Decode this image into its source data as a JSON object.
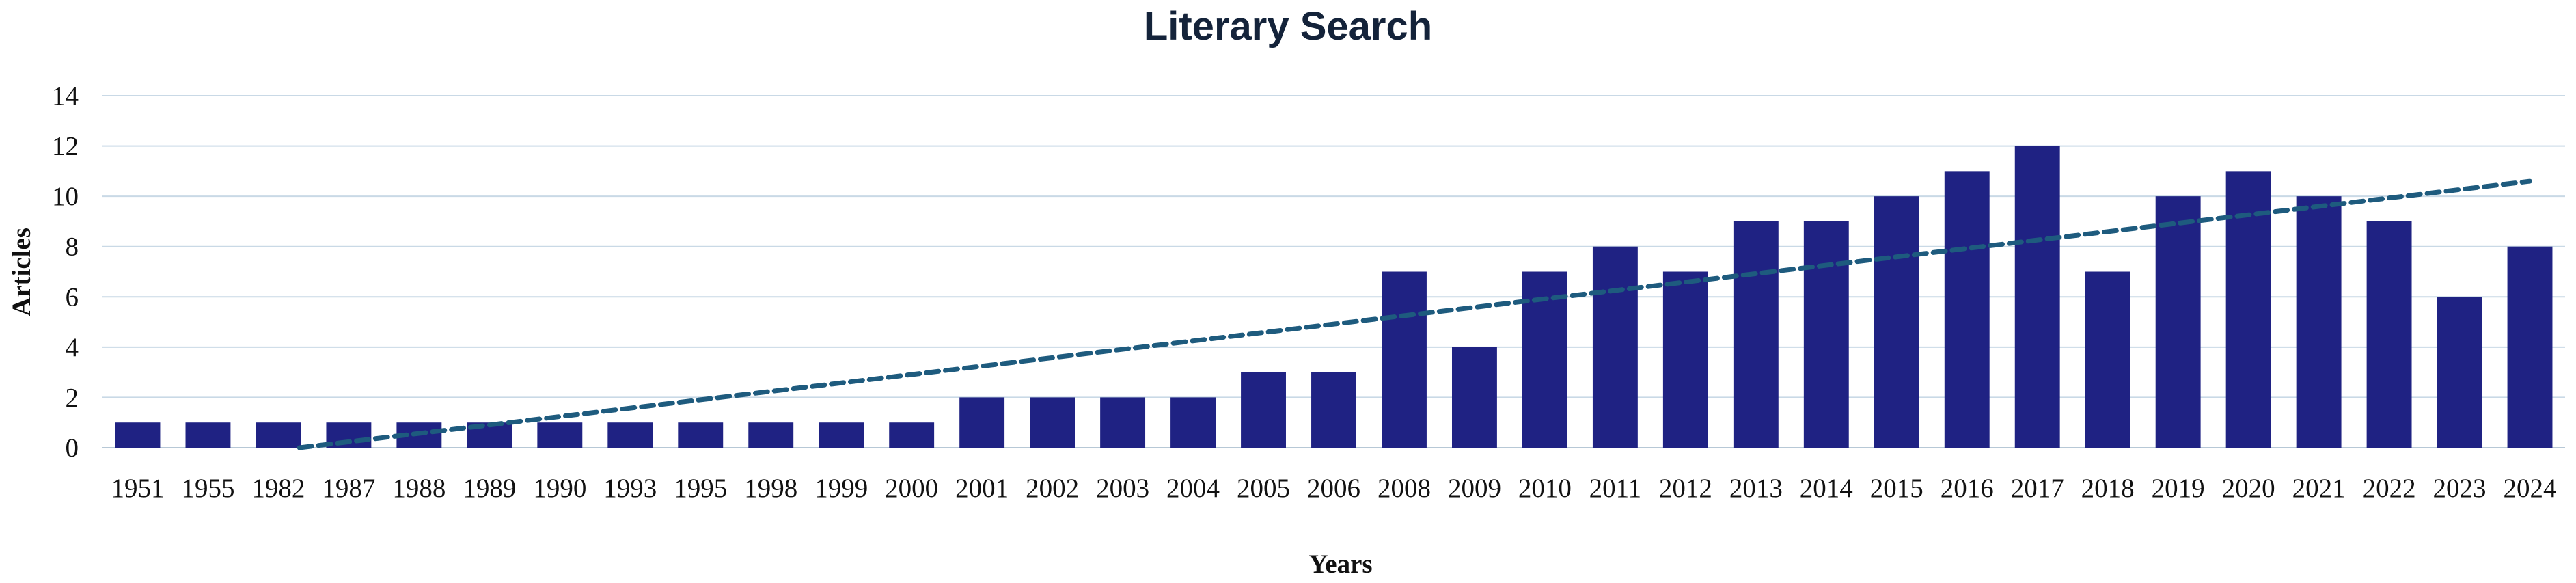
{
  "chart_data": {
    "type": "bar",
    "title": "Literary Search",
    "xlabel": "Years",
    "ylabel": "Articles",
    "ylim": [
      0,
      14
    ],
    "yticks": [
      0,
      2,
      4,
      6,
      8,
      10,
      12,
      14
    ],
    "grid": true,
    "categories": [
      "1951",
      "1955",
      "1982",
      "1987",
      "1988",
      "1989",
      "1990",
      "1993",
      "1995",
      "1998",
      "1999",
      "2000",
      "2001",
      "2002",
      "2003",
      "2004",
      "2005",
      "2006",
      "2008",
      "2009",
      "2010",
      "2011",
      "2012",
      "2013",
      "2014",
      "2015",
      "2016",
      "2017",
      "2018",
      "2019",
      "2020",
      "2021",
      "2022",
      "2023",
      "2024"
    ],
    "series": [
      {
        "values": [
          1,
          1,
          1,
          1,
          1,
          1,
          1,
          1,
          1,
          1,
          1,
          1,
          2,
          2,
          2,
          2,
          3,
          3,
          7,
          4,
          7,
          8,
          7,
          9,
          9,
          10,
          11,
          12,
          7,
          10,
          11,
          10,
          9,
          6,
          8
        ],
        "color": "#1f2283"
      }
    ],
    "trendline": {
      "type": "linear",
      "style": "dashed",
      "color": "#1e5b7e",
      "start_category": "1982",
      "start_value": -0.1,
      "end_category": "2024",
      "end_value": 10.6
    }
  }
}
